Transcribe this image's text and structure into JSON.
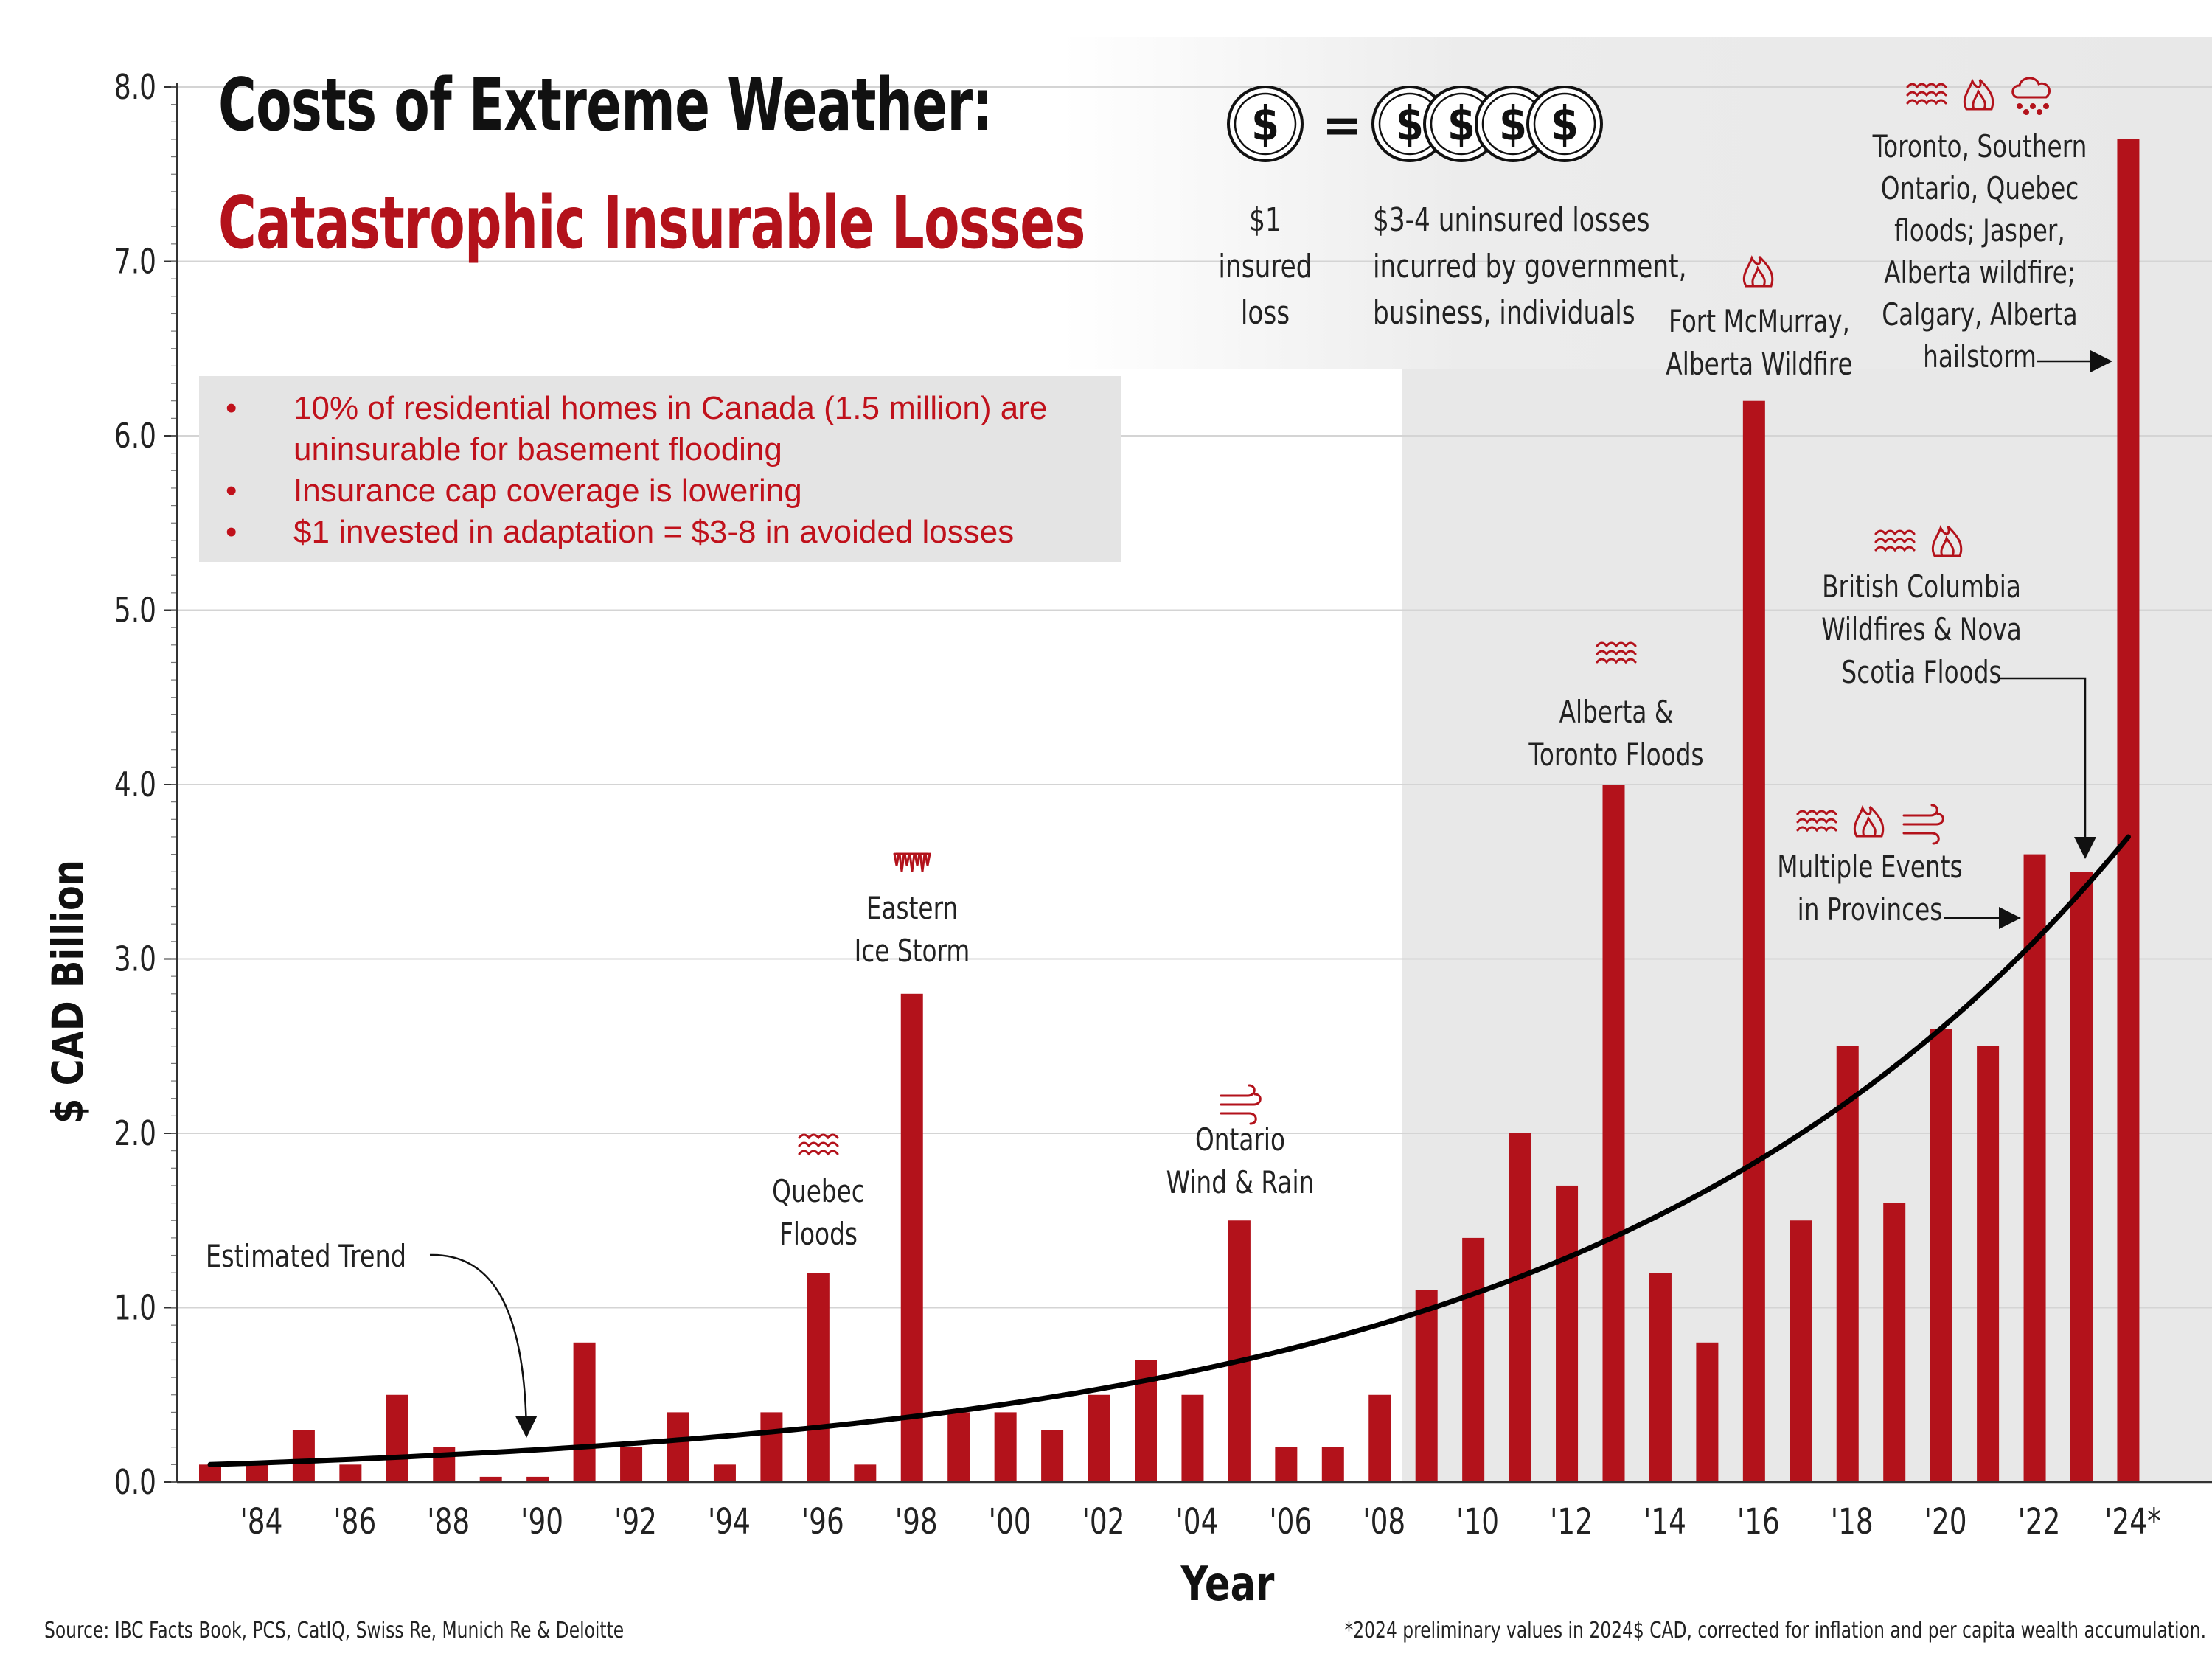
{
  "title_line1": "Costs of Extreme Weather:",
  "title_line2": "Catastrophic Insurable Losses",
  "legend": {
    "coin_symbol": "$",
    "equals": "=",
    "insured_label": [
      "$1",
      "insured",
      "loss"
    ],
    "uninsured_label": [
      "$3-4 uninsured losses",
      "incurred by government,",
      "business, individuals"
    ]
  },
  "bullets": [
    [
      "10% of residential homes in Canada (1.5 million) are",
      "uninsurable for basement flooding"
    ],
    [
      "Insurance cap coverage is lowering"
    ],
    [
      "$1 invested in adaptation = $3-8 in avoided losses"
    ]
  ],
  "bullet_symbol": "•",
  "source": "Source: IBC Facts Book, PCS, CatIQ, Swiss Re, Munich Re & Deloitte",
  "footnote": "*2024 preliminary values in 2024$ CAD, corrected for inflation and per capita wealth accumulation.",
  "colors": {
    "bar": "#b3121b",
    "accent": "#c0111b",
    "shade": "#e8e8e8",
    "trend": "#000000"
  },
  "chart_data": {
    "type": "bar",
    "title": "Costs of Extreme Weather: Catastrophic Insurable Losses",
    "xlabel": "Year",
    "ylabel": "$ CAD Billion",
    "ylim": [
      0,
      8
    ],
    "grid": true,
    "y_ticks": [
      "0.0",
      "1.0",
      "2.0",
      "3.0",
      "4.0",
      "5.0",
      "6.0",
      "7.0",
      "8.0"
    ],
    "x_tick_labels": [
      "'84",
      "'86",
      "'88",
      "'90",
      "'92",
      "'94",
      "'96",
      "'98",
      "'00",
      "'02",
      "'04",
      "'06",
      "'08",
      "'10",
      "'12",
      "'14",
      "'16",
      "'18",
      "'20",
      "'22",
      "'24*"
    ],
    "categories": [
      "1983",
      "1984",
      "1985",
      "1986",
      "1987",
      "1988",
      "1989",
      "1990",
      "1991",
      "1992",
      "1993",
      "1994",
      "1995",
      "1996",
      "1997",
      "1998",
      "1999",
      "2000",
      "2001",
      "2002",
      "2003",
      "2004",
      "2005",
      "2006",
      "2007",
      "2008",
      "2009",
      "2010",
      "2011",
      "2012",
      "2013",
      "2014",
      "2015",
      "2016",
      "2017",
      "2018",
      "2019",
      "2020",
      "2021",
      "2022",
      "2023",
      "2024"
    ],
    "values": [
      0.1,
      0.1,
      0.3,
      0.1,
      0.5,
      0.2,
      0.03,
      0.03,
      0.8,
      0.2,
      0.4,
      0.1,
      0.4,
      1.2,
      0.1,
      2.8,
      0.4,
      0.4,
      0.3,
      0.5,
      0.7,
      0.5,
      1.5,
      0.2,
      0.2,
      0.5,
      1.1,
      1.4,
      2.0,
      1.7,
      4.0,
      1.2,
      0.8,
      6.2,
      1.5,
      2.5,
      1.6,
      2.6,
      2.5,
      3.6,
      3.5,
      7.7
    ],
    "trend": {
      "label": "Estimated Trend",
      "type": "exponential",
      "start": {
        "year": 1983,
        "value": 0.1
      },
      "end": {
        "year": 2024,
        "value": 3.7
      }
    },
    "shaded_period_start": "2009",
    "annotations": [
      {
        "year": "1996",
        "lines": [
          "Quebec",
          "Floods"
        ],
        "icons": [
          "flood"
        ]
      },
      {
        "year": "1998",
        "lines": [
          "Eastern",
          "Ice Storm"
        ],
        "icons": [
          "ice"
        ]
      },
      {
        "year": "2005",
        "lines": [
          "Ontario",
          "Wind & Rain"
        ],
        "icons": [
          "wind"
        ]
      },
      {
        "year": "2013",
        "lines": [
          "Alberta &",
          "Toronto Floods"
        ],
        "icons": [
          "flood"
        ]
      },
      {
        "year": "2016",
        "lines": [
          "Fort McMurray,",
          "Alberta Wildfire"
        ],
        "icons": [
          "fire"
        ]
      },
      {
        "year": "2022",
        "lines": [
          "Multiple Events",
          "in Provinces"
        ],
        "icons": [
          "flood",
          "fire",
          "wind"
        ]
      },
      {
        "year": "2023",
        "lines": [
          "British Columbia",
          "Wildfires & Nova",
          "Scotia Floods"
        ],
        "icons": [
          "flood",
          "fire"
        ]
      },
      {
        "year": "2024",
        "lines": [
          "Toronto, Southern",
          "Ontario, Quebec",
          "floods; Jasper,",
          "Alberta wildfire;",
          "Calgary, Alberta",
          "hailstorm"
        ],
        "icons": [
          "flood",
          "fire",
          "hail"
        ]
      }
    ]
  }
}
